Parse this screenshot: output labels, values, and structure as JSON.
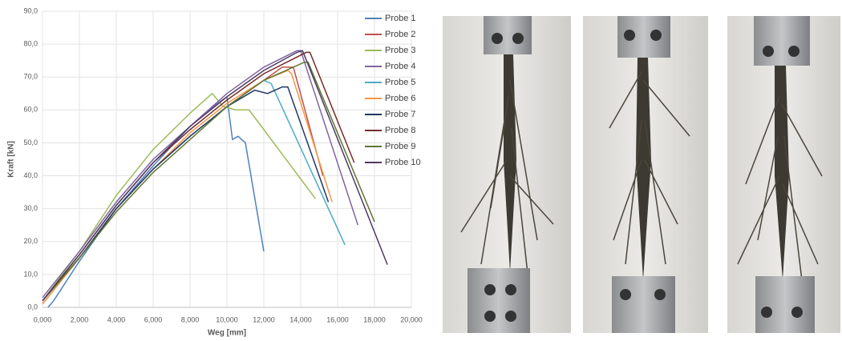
{
  "chart_data": {
    "type": "line",
    "xlabel": "Weg [mm]",
    "ylabel": "Kraft [kN]",
    "xlim": [
      0,
      20000
    ],
    "ylim": [
      0,
      90
    ],
    "xticks": [
      {
        "value": 0,
        "label": "0,000"
      },
      {
        "value": 2000,
        "label": "2,000"
      },
      {
        "value": 4000,
        "label": "4,000"
      },
      {
        "value": 6000,
        "label": "6,000"
      },
      {
        "value": 8000,
        "label": "8,000"
      },
      {
        "value": 10000,
        "label": "10,000"
      },
      {
        "value": 12000,
        "label": "12,000"
      },
      {
        "value": 14000,
        "label": "14,000"
      },
      {
        "value": 16000,
        "label": "16,000"
      },
      {
        "value": 18000,
        "label": "18,000"
      },
      {
        "value": 20000,
        "label": "20,000"
      }
    ],
    "yticks": [
      {
        "value": 0,
        "label": "0,0"
      },
      {
        "value": 10,
        "label": "10,0"
      },
      {
        "value": 20,
        "label": "20,0"
      },
      {
        "value": 30,
        "label": "30,0"
      },
      {
        "value": 40,
        "label": "40,0"
      },
      {
        "value": 50,
        "label": "50,0"
      },
      {
        "value": 60,
        "label": "60,0"
      },
      {
        "value": 70,
        "label": "70,0"
      },
      {
        "value": 80,
        "label": "80,0"
      },
      {
        "value": 90,
        "label": "90,0"
      }
    ],
    "grid": true,
    "series": [
      {
        "name": "Probe 1",
        "color": "#4f81bd",
        "x": [
          300,
          600,
          2000,
          4000,
          6000,
          8000,
          9500,
          10000,
          10300,
          10600,
          11000,
          12000
        ],
        "values": [
          0,
          2,
          14,
          30,
          43,
          55,
          62,
          64,
          51,
          52,
          50,
          17
        ]
      },
      {
        "name": "Probe 2",
        "color": "#c0504d",
        "x": [
          0,
          2000,
          4000,
          6000,
          8000,
          10000,
          12000,
          13000,
          13600,
          15200
        ],
        "values": [
          2,
          15,
          30,
          42,
          52,
          61,
          69,
          73,
          73,
          40
        ]
      },
      {
        "name": "Probe 3",
        "color": "#9bbb59",
        "x": [
          0,
          2000,
          4000,
          6000,
          8000,
          9200,
          9800,
          10500,
          11200,
          14800
        ],
        "values": [
          2,
          17,
          34,
          48,
          59,
          65,
          61,
          60,
          60,
          33
        ]
      },
      {
        "name": "Probe 4",
        "color": "#8064a2",
        "x": [
          0,
          2000,
          4000,
          6000,
          8000,
          10000,
          12000,
          13800,
          14000,
          17100
        ],
        "values": [
          3,
          17,
          32,
          45,
          55,
          65,
          73,
          78,
          78,
          25
        ]
      },
      {
        "name": "Probe 5",
        "color": "#4bacc6",
        "x": [
          0,
          2000,
          4000,
          6000,
          8000,
          10000,
          11000,
          12000,
          12400,
          16400
        ],
        "values": [
          1,
          15,
          30,
          42,
          52,
          61,
          65,
          69,
          68,
          19
        ]
      },
      {
        "name": "Probe 6",
        "color": "#f79646",
        "x": [
          0,
          2000,
          4000,
          6000,
          8000,
          10000,
          12000,
          13300,
          13500,
          15700
        ],
        "values": [
          1,
          15,
          30,
          42,
          53,
          62,
          69,
          72,
          71,
          32
        ]
      },
      {
        "name": "Probe 7",
        "color": "#1f3864",
        "x": [
          0,
          2000,
          4000,
          6000,
          8000,
          10000,
          11500,
          12200,
          13000,
          13300,
          15500
        ],
        "values": [
          2,
          15,
          30,
          42,
          52,
          61,
          66,
          65,
          67,
          67,
          32
        ]
      },
      {
        "name": "Probe 8",
        "color": "#772c2a",
        "x": [
          0,
          2000,
          4000,
          6000,
          8000,
          10000,
          12000,
          14300,
          14500,
          16900
        ],
        "values": [
          2,
          16,
          31,
          44,
          54,
          63,
          71,
          77.5,
          77.5,
          44
        ]
      },
      {
        "name": "Probe 9",
        "color": "#5f7530",
        "x": [
          0,
          2000,
          4000,
          6000,
          8000,
          10000,
          12000,
          14200,
          14400,
          18000
        ],
        "values": [
          2,
          15,
          29,
          41,
          51,
          61,
          69,
          74.5,
          74.5,
          26
        ]
      },
      {
        "name": "Probe 10",
        "color": "#4d3b62",
        "x": [
          0,
          2000,
          4000,
          6000,
          8000,
          10000,
          12000,
          13800,
          14100,
          18700
        ],
        "values": [
          2,
          16,
          31,
          44,
          55,
          64,
          72,
          77.5,
          78,
          13
        ]
      }
    ]
  }
}
